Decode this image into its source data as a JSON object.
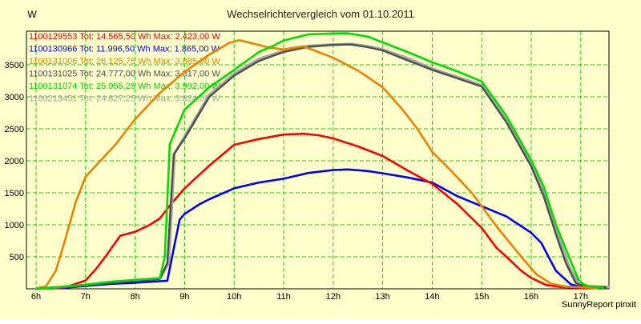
{
  "title": "Wechselrichtervergleich vom 01.10.2011",
  "y_unit_label": "W",
  "footer": "SunnyReport pinxit",
  "colors": {
    "background": "#ffffcc",
    "grid": "#00e400",
    "frame": "#000000",
    "title_text": "#222222",
    "tick_text": "#000000",
    "red": "#ff0000",
    "blue": "#0000ff",
    "orange": "#f08000",
    "dark_gray": "#4d4d4d",
    "green": "#00dd00",
    "light_gray": "#a6a6a6"
  },
  "legend": [
    {
      "label": "1100129553 Tot: 14.565,50 Wh Max: 2.423,00 W",
      "color": "#ff0000"
    },
    {
      "label": "1100130966 Tot: 11.996,50 Wh Max: 1.865,00 W",
      "color": "#0000ff"
    },
    {
      "label": "1100131006 Tot: 26.125,75 Wh Max: 3.885,00 W",
      "color": "#f08000"
    },
    {
      "label": "1100131025 Tot: 24.777,00 Wh Max: 3.817,00 W",
      "color": "#4d4d4d"
    },
    {
      "label": "1100131074 Tot: 25.955,25 Wh Max: 3.992,00 W",
      "color": "#00dd00"
    },
    {
      "label": "1100213451 Tot: 24.827,25 Wh Max: 3.824,00 W",
      "color": "#a6a6a6"
    }
  ],
  "chart_data": {
    "type": "line",
    "title": "Wechselrichtervergleich vom 01.10.2011",
    "xlabel": "",
    "ylabel": "W",
    "x_ticks": [
      "6h",
      "7h",
      "8h",
      "9h",
      "10h",
      "11h",
      "12h",
      "13h",
      "14h",
      "15h",
      "16h",
      "17h"
    ],
    "x_tick_hours": [
      6,
      7,
      8,
      9,
      10,
      11,
      12,
      13,
      14,
      15,
      16,
      17
    ],
    "y_ticks": [
      500,
      1000,
      1500,
      2000,
      2500,
      3000,
      3500
    ],
    "xlim_hours": [
      5.8,
      17.57
    ],
    "ylim": [
      0,
      4025
    ],
    "grid": true,
    "legend_position": "top-left-inside",
    "series": [
      {
        "name": "1100130966",
        "color": "#0000ff",
        "width": 2.6,
        "total_wh": "11.996,50",
        "max_w": "1.865,00",
        "points": [
          [
            6,
            0
          ],
          [
            6.5,
            12
          ],
          [
            7,
            45
          ],
          [
            7.5,
            75
          ],
          [
            8,
            95
          ],
          [
            8.4,
            115
          ],
          [
            8.65,
            125
          ],
          [
            8.8,
            700
          ],
          [
            8.9,
            1080
          ],
          [
            9,
            1170
          ],
          [
            9.3,
            1320
          ],
          [
            9.5,
            1400
          ],
          [
            10,
            1570
          ],
          [
            10.5,
            1660
          ],
          [
            11,
            1720
          ],
          [
            11.5,
            1810
          ],
          [
            12,
            1855
          ],
          [
            12.3,
            1865
          ],
          [
            12.7,
            1840
          ],
          [
            13,
            1805
          ],
          [
            13.5,
            1740
          ],
          [
            14,
            1660
          ],
          [
            14.5,
            1450
          ],
          [
            15,
            1290
          ],
          [
            15.5,
            1130
          ],
          [
            16,
            875
          ],
          [
            16.2,
            720
          ],
          [
            16.35,
            500
          ],
          [
            16.5,
            280
          ],
          [
            16.8,
            70
          ],
          [
            17,
            28
          ],
          [
            17.2,
            12
          ]
        ]
      },
      {
        "name": "1100129553",
        "color": "#ff0000",
        "width": 2.6,
        "total_wh": "14.565,50",
        "max_w": "2.423,00",
        "points": [
          [
            6,
            0
          ],
          [
            6.3,
            5
          ],
          [
            6.6,
            25
          ],
          [
            7,
            130
          ],
          [
            7.2,
            300
          ],
          [
            7.4,
            500
          ],
          [
            7.7,
            830
          ],
          [
            8,
            890
          ],
          [
            8.3,
            1000
          ],
          [
            8.5,
            1100
          ],
          [
            8.7,
            1300
          ],
          [
            9,
            1570
          ],
          [
            9.5,
            1925
          ],
          [
            10,
            2250
          ],
          [
            10.5,
            2340
          ],
          [
            11,
            2410
          ],
          [
            11.4,
            2423
          ],
          [
            11.7,
            2400
          ],
          [
            12,
            2350
          ],
          [
            12.5,
            2225
          ],
          [
            13,
            2075
          ],
          [
            13.5,
            1850
          ],
          [
            14,
            1640
          ],
          [
            14.5,
            1330
          ],
          [
            15,
            950
          ],
          [
            15.3,
            640
          ],
          [
            15.5,
            500
          ],
          [
            15.8,
            280
          ],
          [
            16,
            170
          ],
          [
            16.3,
            60
          ],
          [
            16.6,
            28
          ],
          [
            17,
            18
          ],
          [
            17.3,
            10
          ]
        ]
      },
      {
        "name": "1100213451",
        "color": "#a6a6a6",
        "width": 3.2,
        "total_wh": "24.827,25",
        "max_w": "3.824,00",
        "points": [
          [
            6,
            0
          ],
          [
            6.5,
            28
          ],
          [
            7,
            60
          ],
          [
            7.5,
            100
          ],
          [
            8,
            130
          ],
          [
            8.5,
            160
          ],
          [
            8.68,
            400
          ],
          [
            8.8,
            2120
          ],
          [
            9,
            2380
          ],
          [
            9.5,
            3030
          ],
          [
            10,
            3360
          ],
          [
            10.5,
            3590
          ],
          [
            11,
            3720
          ],
          [
            11.5,
            3795
          ],
          [
            12,
            3818
          ],
          [
            12.4,
            3824
          ],
          [
            12.7,
            3790
          ],
          [
            13,
            3740
          ],
          [
            13.55,
            3590
          ],
          [
            14,
            3440
          ],
          [
            14.5,
            3310
          ],
          [
            15,
            3180
          ],
          [
            15.5,
            2630
          ],
          [
            16,
            1940
          ],
          [
            16.3,
            1420
          ],
          [
            16.55,
            820
          ],
          [
            16.75,
            380
          ],
          [
            16.95,
            80
          ],
          [
            17.1,
            40
          ],
          [
            17.57,
            28
          ]
        ]
      },
      {
        "name": "1100131025",
        "color": "#4d4d4d",
        "width": 2.4,
        "total_wh": "24.777,00",
        "max_w": "3.817,00",
        "points": [
          [
            6,
            0
          ],
          [
            6.5,
            25
          ],
          [
            7,
            55
          ],
          [
            7.5,
            95
          ],
          [
            8,
            125
          ],
          [
            8.5,
            155
          ],
          [
            8.65,
            400
          ],
          [
            8.78,
            2100
          ],
          [
            9,
            2350
          ],
          [
            9.5,
            3000
          ],
          [
            10,
            3330
          ],
          [
            10.5,
            3560
          ],
          [
            11,
            3700
          ],
          [
            11.5,
            3780
          ],
          [
            12,
            3810
          ],
          [
            12.35,
            3817
          ],
          [
            12.7,
            3775
          ],
          [
            13,
            3725
          ],
          [
            13.5,
            3570
          ],
          [
            14,
            3420
          ],
          [
            14.5,
            3290
          ],
          [
            15,
            3160
          ],
          [
            15.5,
            2600
          ],
          [
            16,
            1910
          ],
          [
            16.25,
            1450
          ],
          [
            16.5,
            850
          ],
          [
            16.7,
            400
          ],
          [
            16.9,
            90
          ],
          [
            17.05,
            45
          ],
          [
            17.5,
            25
          ]
        ]
      },
      {
        "name": "1100131006",
        "color": "#f08000",
        "width": 2.6,
        "total_wh": "26.125,75",
        "max_w": "3.885,00",
        "points": [
          [
            6,
            5
          ],
          [
            6.2,
            40
          ],
          [
            6.4,
            280
          ],
          [
            6.6,
            800
          ],
          [
            6.8,
            1350
          ],
          [
            7,
            1750
          ],
          [
            7.3,
            2000
          ],
          [
            7.6,
            2250
          ],
          [
            8,
            2650
          ],
          [
            8.5,
            3060
          ],
          [
            9,
            3390
          ],
          [
            9.5,
            3660
          ],
          [
            9.9,
            3840
          ],
          [
            10.1,
            3885
          ],
          [
            10.4,
            3830
          ],
          [
            10.7,
            3770
          ],
          [
            11,
            3740
          ],
          [
            11.4,
            3790
          ],
          [
            11.7,
            3700
          ],
          [
            12,
            3610
          ],
          [
            12.5,
            3410
          ],
          [
            13,
            3150
          ],
          [
            13.4,
            2800
          ],
          [
            13.7,
            2500
          ],
          [
            14,
            2140
          ],
          [
            14.4,
            1830
          ],
          [
            14.8,
            1500
          ],
          [
            15.3,
            975
          ],
          [
            15.8,
            500
          ],
          [
            16.1,
            230
          ],
          [
            16.4,
            80
          ],
          [
            16.7,
            35
          ],
          [
            17,
            25
          ],
          [
            17.35,
            12
          ]
        ]
      },
      {
        "name": "1100131074",
        "color": "#00dd00",
        "width": 2.6,
        "total_wh": "25.955,25",
        "max_w": "3.992,00",
        "points": [
          [
            6,
            2
          ],
          [
            6.5,
            30
          ],
          [
            7,
            65
          ],
          [
            7.5,
            110
          ],
          [
            8,
            140
          ],
          [
            8.5,
            168
          ],
          [
            8.6,
            500
          ],
          [
            8.7,
            2260
          ],
          [
            9,
            2800
          ],
          [
            9.5,
            3150
          ],
          [
            10,
            3420
          ],
          [
            10.5,
            3700
          ],
          [
            10.8,
            3800
          ],
          [
            11,
            3880
          ],
          [
            11.5,
            3975
          ],
          [
            12,
            3990
          ],
          [
            12.3,
            3992
          ],
          [
            12.7,
            3940
          ],
          [
            13,
            3850
          ],
          [
            13.5,
            3700
          ],
          [
            14,
            3540
          ],
          [
            14.5,
            3400
          ],
          [
            15,
            3240
          ],
          [
            15.5,
            2700
          ],
          [
            16,
            2010
          ],
          [
            16.25,
            1600
          ],
          [
            16.5,
            1000
          ],
          [
            16.75,
            520
          ],
          [
            16.95,
            150
          ],
          [
            17.05,
            70
          ],
          [
            17.2,
            35
          ],
          [
            17.45,
            15
          ]
        ]
      }
    ]
  }
}
